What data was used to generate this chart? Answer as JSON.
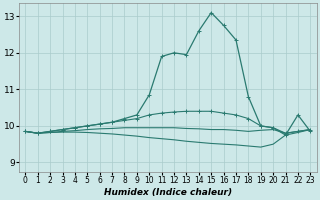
{
  "xlabel": "Humidex (Indice chaleur)",
  "bg_color": "#cde8e8",
  "grid_color": "#aacccc",
  "line_color": "#2a7a70",
  "xlim": [
    -0.5,
    23.5
  ],
  "ylim": [
    8.75,
    13.35
  ],
  "xticks": [
    0,
    1,
    2,
    3,
    4,
    5,
    6,
    7,
    8,
    9,
    10,
    11,
    12,
    13,
    14,
    15,
    16,
    17,
    18,
    19,
    20,
    21,
    22,
    23
  ],
  "yticks": [
    9,
    10,
    11,
    12,
    13
  ],
  "curve_main": {
    "x": [
      0,
      1,
      2,
      3,
      4,
      5,
      6,
      7,
      8,
      9,
      10,
      11,
      12,
      13,
      14,
      15,
      16,
      17,
      18,
      19,
      20,
      21,
      22,
      23
    ],
    "y": [
      9.85,
      9.8,
      9.85,
      9.9,
      9.95,
      10.0,
      10.05,
      10.1,
      10.2,
      10.3,
      10.85,
      11.9,
      12.0,
      11.95,
      12.6,
      13.1,
      12.75,
      12.35,
      10.8,
      10.0,
      9.95,
      9.75,
      10.3,
      9.85
    ]
  },
  "curve_rising": {
    "x": [
      0,
      1,
      2,
      3,
      4,
      5,
      6,
      7,
      8,
      9,
      10,
      11,
      12,
      13,
      14,
      15,
      16,
      17,
      18,
      19,
      20,
      21,
      22,
      23
    ],
    "y": [
      9.85,
      9.8,
      9.85,
      9.9,
      9.95,
      10.0,
      10.05,
      10.1,
      10.15,
      10.2,
      10.3,
      10.35,
      10.38,
      10.4,
      10.4,
      10.4,
      10.35,
      10.3,
      10.2,
      10.0,
      9.95,
      9.8,
      9.85,
      9.9
    ]
  },
  "curve_flat1": {
    "x": [
      0,
      1,
      2,
      3,
      4,
      5,
      6,
      7,
      8,
      9,
      10,
      11,
      12,
      13,
      14,
      15,
      16,
      17,
      18,
      19,
      20,
      21,
      22,
      23
    ],
    "y": [
      9.85,
      9.8,
      9.82,
      9.85,
      9.87,
      9.9,
      9.92,
      9.93,
      9.95,
      9.95,
      9.95,
      9.95,
      9.95,
      9.93,
      9.92,
      9.9,
      9.9,
      9.88,
      9.85,
      9.88,
      9.9,
      9.8,
      9.85,
      9.9
    ]
  },
  "curve_declining": {
    "x": [
      0,
      1,
      2,
      3,
      4,
      5,
      6,
      7,
      8,
      9,
      10,
      11,
      12,
      13,
      14,
      15,
      16,
      17,
      18,
      19,
      20,
      21,
      22,
      23
    ],
    "y": [
      9.85,
      9.8,
      9.82,
      9.83,
      9.83,
      9.82,
      9.8,
      9.78,
      9.75,
      9.72,
      9.68,
      9.65,
      9.62,
      9.58,
      9.55,
      9.52,
      9.5,
      9.48,
      9.45,
      9.42,
      9.5,
      9.75,
      9.82,
      9.9
    ]
  }
}
